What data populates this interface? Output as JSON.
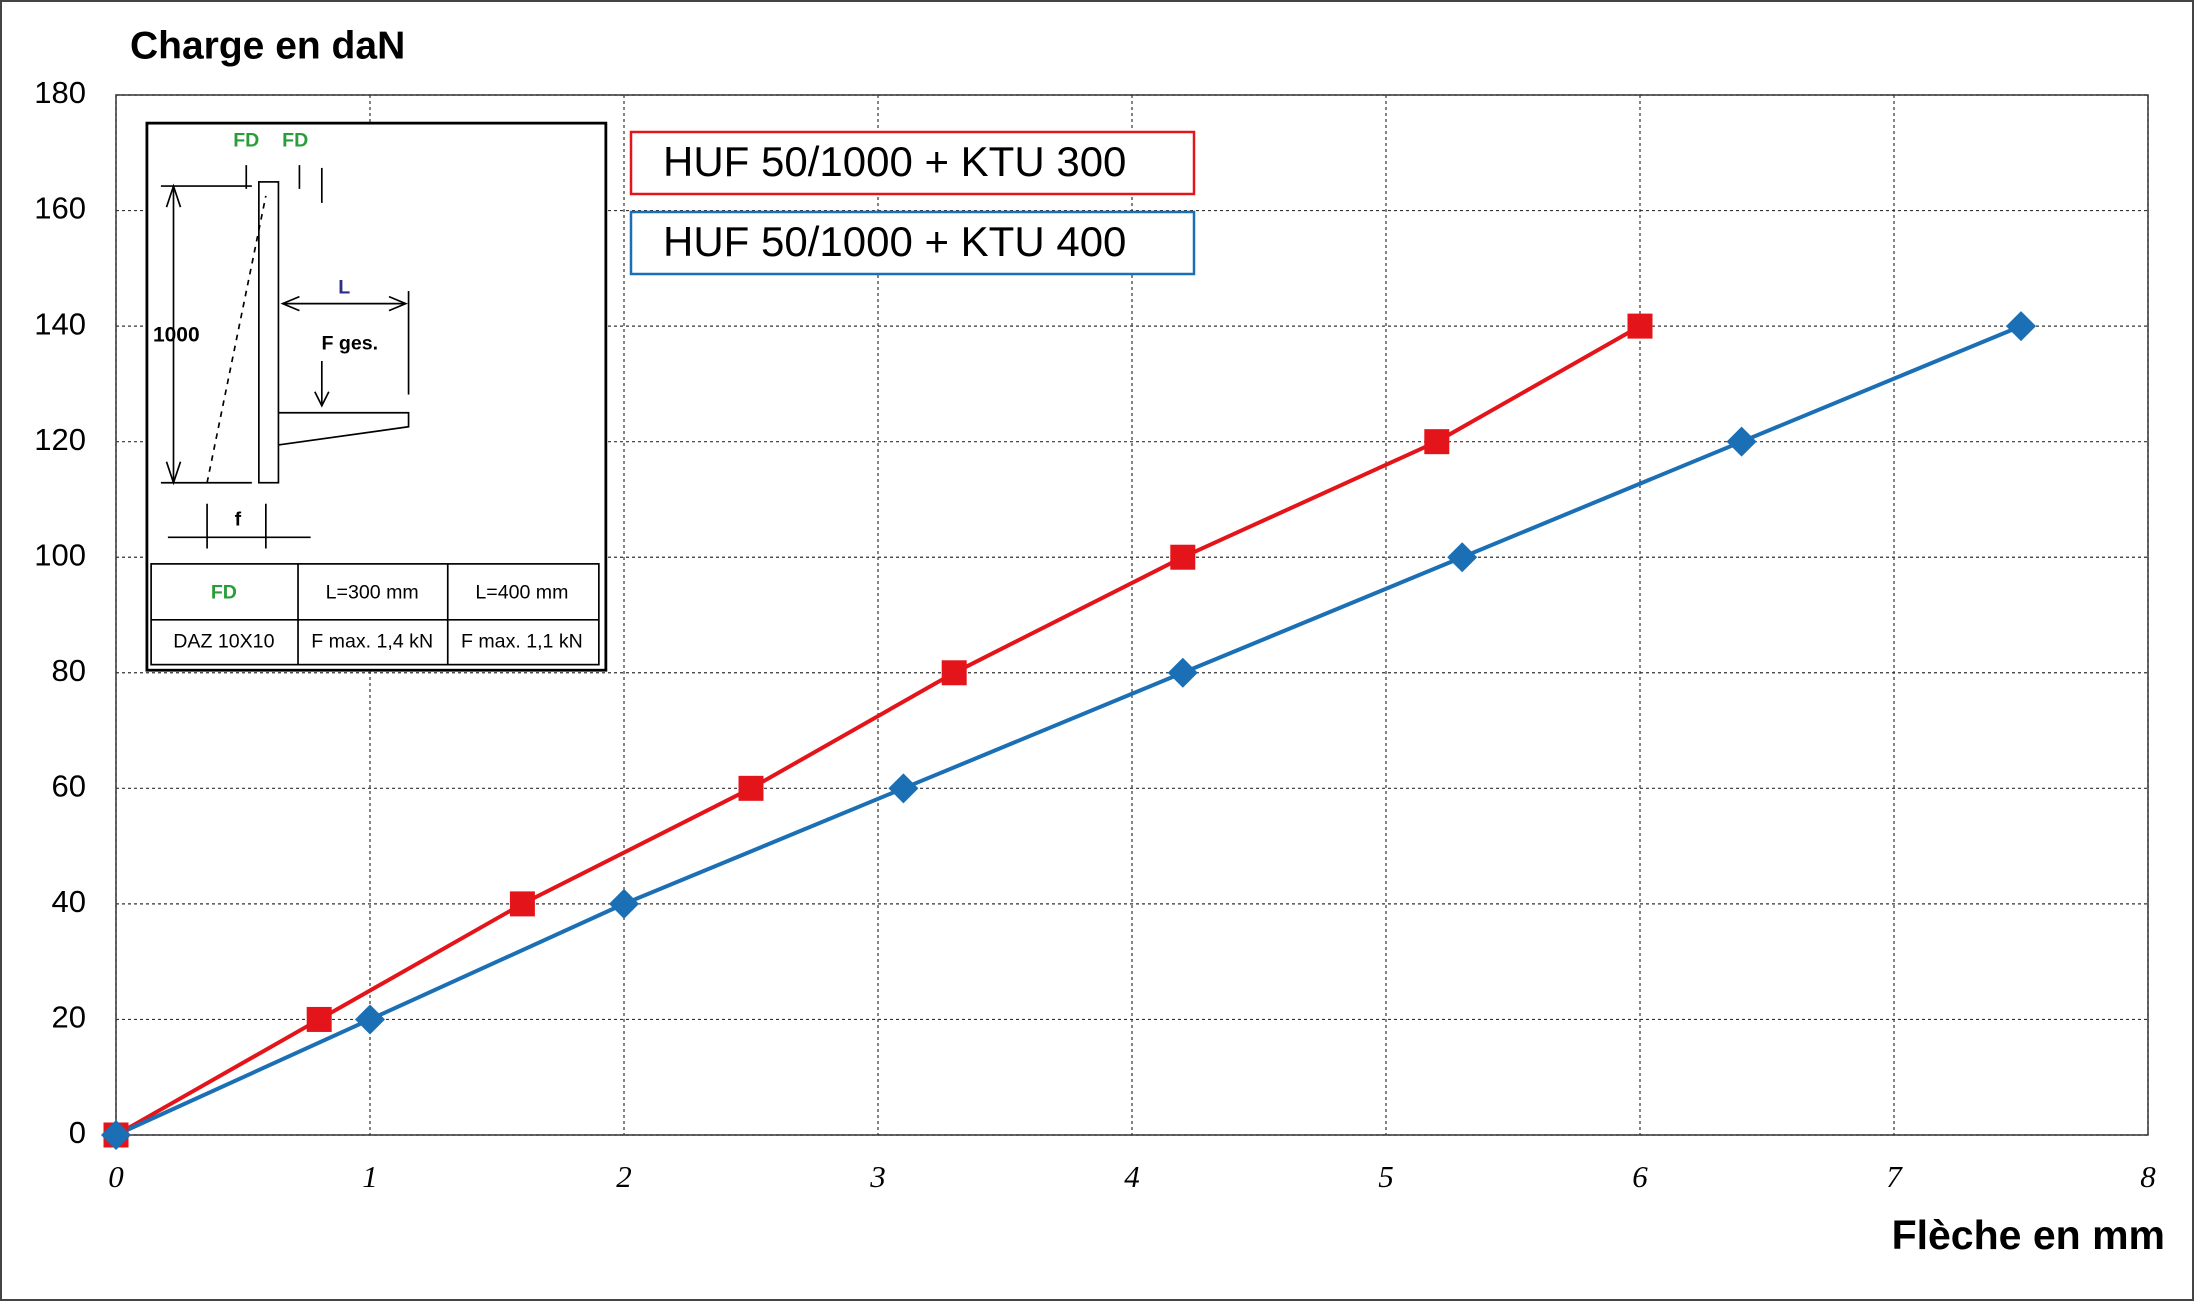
{
  "chart_data": {
    "type": "line",
    "title": "Charge en daN",
    "x_label": "Flèche en mm",
    "xlim": [
      0,
      8
    ],
    "xticks": [
      0,
      1,
      2,
      3,
      4,
      5,
      6,
      7,
      8
    ],
    "ylim": [
      0,
      180
    ],
    "yticks": [
      0,
      20,
      40,
      60,
      80,
      100,
      120,
      140,
      160,
      180
    ],
    "grid": true,
    "legend": "top-left",
    "series": [
      {
        "name": "HUF 50/1000 + KTU 300",
        "color": "#e3151a",
        "marker": "square",
        "x": [
          0,
          0.8,
          1.6,
          2.5,
          3.3,
          4.2,
          5.2,
          6
        ],
        "values": [
          0,
          20,
          40,
          60,
          80,
          100,
          120,
          140
        ]
      },
      {
        "name": "HUF 50/1000 + KTU 400",
        "color": "#1b6fb5",
        "marker": "diamond",
        "x": [
          0,
          1,
          2,
          3.1,
          4.2,
          5.3,
          6.4,
          7.5
        ],
        "values": [
          0,
          20,
          40,
          60,
          80,
          100,
          120,
          140
        ]
      }
    ],
    "inset": {
      "labels": [
        "FD",
        "FD",
        "L",
        "1000",
        "F ges.",
        "f"
      ],
      "table": [
        [
          "FD",
          "L=300 mm",
          "L=400 mm"
        ],
        [
          "DAZ 10X10",
          "F max. 1,4 kN",
          "F max. 1,1 kN"
        ]
      ]
    }
  }
}
